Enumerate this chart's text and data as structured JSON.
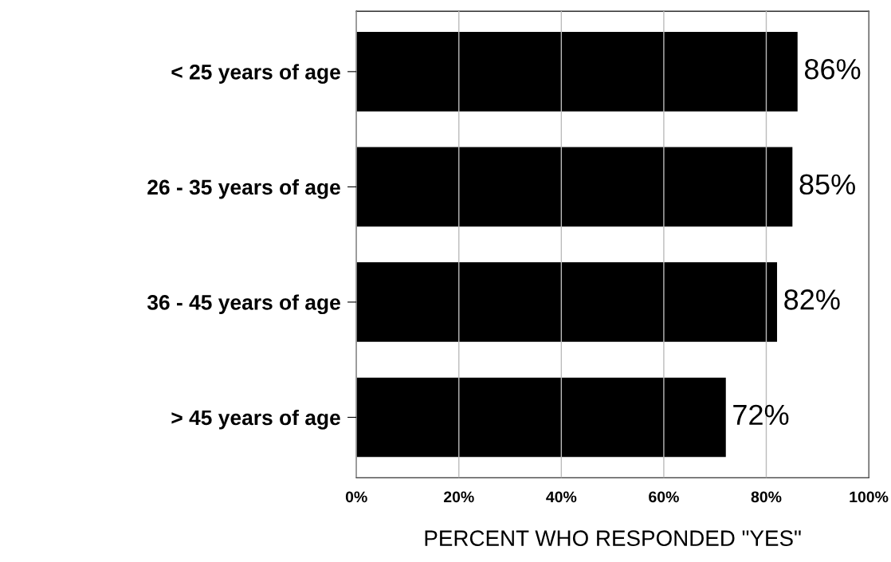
{
  "chart_data": {
    "type": "bar",
    "orientation": "horizontal",
    "xlabel": "PERCENT WHO RESPONDED \"YES\"",
    "categories": [
      "< 25 years of age",
      "26 - 35 years of age",
      "36 - 45 years of age",
      "> 45 years of age"
    ],
    "values": [
      86,
      85,
      82,
      72
    ],
    "value_labels": [
      "86%",
      "85%",
      "82%",
      "72%"
    ],
    "color": "#000000",
    "xlim": [
      0,
      100
    ],
    "xticks": [
      {
        "value": 0,
        "label": "0%"
      },
      {
        "value": 20,
        "label": "20%"
      },
      {
        "value": 40,
        "label": "40%"
      },
      {
        "value": 60,
        "label": "60%"
      },
      {
        "value": 80,
        "label": "80%"
      },
      {
        "value": 100,
        "label": "100%"
      }
    ],
    "grid": "x"
  }
}
